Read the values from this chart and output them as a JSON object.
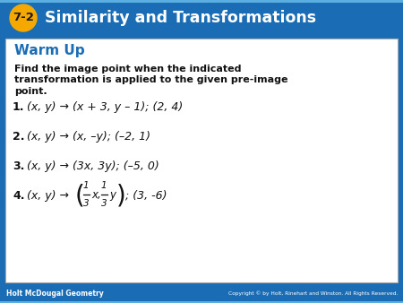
{
  "header_bg_color": "#1a6db5",
  "header_text_color": "#ffffff",
  "header_title": "Similarity and Transformations",
  "header_badge_color": "#f5a800",
  "header_badge_text": "7-2",
  "footer_bg_color": "#1a6db5",
  "footer_left": "Holt McDougal Geometry",
  "footer_right": "Copyright © by Holt, Rinehart and Winston. All Rights Reserved.",
  "footer_text_color": "#ffffff",
  "body_bg_color": "#ffffff",
  "body_border_color": "#aaaaaa",
  "warmup_color": "#1a6db5",
  "warmup_title": "Warm Up",
  "instruction_bold": "Find the image point when the indicated\ntransformation is applied to the given pre-image\npoint",
  "items": [
    {
      "num": "1.",
      "text": "(x, y) → (x + 3, y – 1); (2, 4)"
    },
    {
      "num": "2.",
      "text": "(x, y) → (x, –y); (–2, 1)"
    },
    {
      "num": "3.",
      "text": "(x, y) → (3x, 3y); (–5, 0)"
    },
    {
      "num": "4.",
      "text_prefix": "(x, y) →",
      "fraction": true,
      "suffix": "; (3, -6)"
    }
  ],
  "figwidth": 4.5,
  "figheight": 3.38,
  "dpi": 100
}
